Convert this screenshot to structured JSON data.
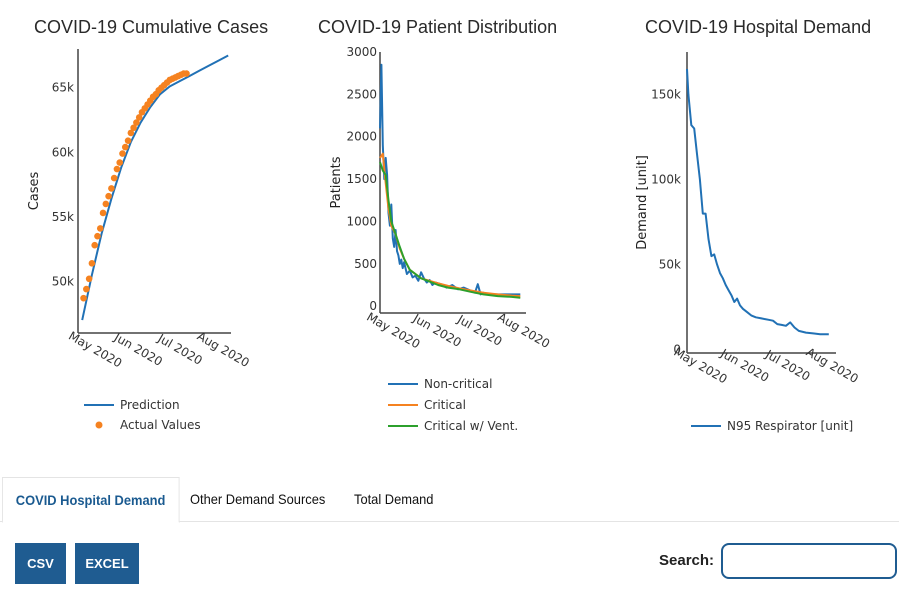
{
  "colors": {
    "blue": "#2171b5",
    "orange": "#f58220",
    "green": "#2ca02c",
    "button": "#1f5c91"
  },
  "chart_data": [
    {
      "type": "line",
      "title": "COVID-19 Cumulative Cases",
      "ylabel": "Cases",
      "xlabel": "",
      "x_ticks": [
        "May 2020",
        "Jun 2020",
        "Jul 2020",
        "Aug 2020"
      ],
      "y_ticks": [
        {
          "value": 50000,
          "label": "50k"
        },
        {
          "value": 55000,
          "label": "55k"
        },
        {
          "value": 60000,
          "label": "60k"
        },
        {
          "value": 65000,
          "label": "65k"
        }
      ],
      "xlim": [
        "2020-04-20",
        "2020-08-08"
      ],
      "ylim": [
        46000,
        68000
      ],
      "legend": [
        "Prediction",
        "Actual Values"
      ],
      "legend_position": "bottom",
      "series": [
        {
          "name": "Prediction",
          "kind": "line",
          "color": "#2171b5",
          "x": [
            "2020-04-23",
            "2020-04-30",
            "2020-05-07",
            "2020-05-14",
            "2020-05-21",
            "2020-05-28",
            "2020-06-04",
            "2020-06-11",
            "2020-06-18",
            "2020-06-25",
            "2020-07-02",
            "2020-07-09",
            "2020-07-16",
            "2020-07-23",
            "2020-07-30",
            "2020-08-06"
          ],
          "y": [
            47000,
            50500,
            53700,
            56400,
            58800,
            60800,
            62300,
            63500,
            64500,
            65100,
            65500,
            65900,
            66300,
            66700,
            67100,
            67500
          ]
        },
        {
          "name": "Actual Values",
          "kind": "scatter",
          "color": "#f58220",
          "x": [
            "2020-04-24",
            "2020-04-26",
            "2020-04-28",
            "2020-04-30",
            "2020-05-02",
            "2020-05-04",
            "2020-05-06",
            "2020-05-08",
            "2020-05-10",
            "2020-05-12",
            "2020-05-14",
            "2020-05-16",
            "2020-05-18",
            "2020-05-20",
            "2020-05-22",
            "2020-05-24",
            "2020-05-26",
            "2020-05-28",
            "2020-05-30",
            "2020-06-01",
            "2020-06-03",
            "2020-06-05",
            "2020-06-07",
            "2020-06-09",
            "2020-06-11",
            "2020-06-13",
            "2020-06-15",
            "2020-06-17",
            "2020-06-19",
            "2020-06-21",
            "2020-06-23",
            "2020-06-25",
            "2020-06-27",
            "2020-06-29",
            "2020-07-01",
            "2020-07-03",
            "2020-07-05",
            "2020-07-07"
          ],
          "y": [
            48700,
            49400,
            50200,
            51400,
            52800,
            53500,
            54100,
            55300,
            56000,
            56600,
            57200,
            58000,
            58700,
            59200,
            59900,
            60400,
            60900,
            61500,
            61900,
            62300,
            62700,
            63100,
            63400,
            63700,
            64000,
            64300,
            64500,
            64800,
            65000,
            65200,
            65400,
            65600,
            65700,
            65800,
            65900,
            66000,
            66100,
            66100
          ]
        }
      ]
    },
    {
      "type": "line",
      "title": "COVID-19 Patient Distribution",
      "ylabel": "Patients",
      "xlabel": "",
      "x_ticks": [
        "May 2020",
        "Jun 2020",
        "Jul 2020",
        "Aug 2020"
      ],
      "y_ticks": [
        {
          "value": 0,
          "label": "0"
        },
        {
          "value": 500,
          "label": "500"
        },
        {
          "value": 1000,
          "label": "1000"
        },
        {
          "value": 1500,
          "label": "1500"
        },
        {
          "value": 2000,
          "label": "2000"
        },
        {
          "value": 2500,
          "label": "2500"
        },
        {
          "value": 3000,
          "label": "3000"
        }
      ],
      "xlim": [
        "2020-04-23",
        "2020-08-04"
      ],
      "ylim": [
        -80,
        3000
      ],
      "legend": [
        "Non-critical",
        "Critical",
        "Critical w/ Vent."
      ],
      "legend_position": "bottom",
      "series": [
        {
          "name": "Non-critical",
          "color": "#2171b5",
          "x": [
            "2020-04-23",
            "2020-04-24",
            "2020-04-25",
            "2020-04-26",
            "2020-04-27",
            "2020-04-28",
            "2020-04-29",
            "2020-04-30",
            "2020-05-01",
            "2020-05-02",
            "2020-05-03",
            "2020-05-04",
            "2020-05-05",
            "2020-05-06",
            "2020-05-07",
            "2020-05-08",
            "2020-05-09",
            "2020-05-10",
            "2020-05-12",
            "2020-05-14",
            "2020-05-16",
            "2020-05-18",
            "2020-05-20",
            "2020-05-22",
            "2020-05-24",
            "2020-05-26",
            "2020-05-28",
            "2020-05-30",
            "2020-06-01",
            "2020-06-05",
            "2020-06-09",
            "2020-06-13",
            "2020-06-17",
            "2020-06-21",
            "2020-06-25",
            "2020-06-29",
            "2020-07-01",
            "2020-07-03",
            "2020-07-05",
            "2020-07-08",
            "2020-07-12",
            "2020-07-16",
            "2020-07-20",
            "2020-07-25",
            "2020-07-31"
          ],
          "y": [
            2100,
            2850,
            1900,
            1500,
            1750,
            1550,
            1100,
            950,
            1200,
            800,
            700,
            900,
            650,
            600,
            500,
            550,
            450,
            520,
            380,
            420,
            340,
            360,
            300,
            400,
            330,
            280,
            310,
            250,
            280,
            260,
            220,
            250,
            200,
            220,
            190,
            160,
            260,
            140,
            160,
            140,
            140,
            140,
            140,
            140,
            140
          ]
        },
        {
          "name": "Critical",
          "color": "#f58220",
          "x": [
            "2020-04-23",
            "2020-04-25",
            "2020-04-27",
            "2020-04-29",
            "2020-05-01",
            "2020-05-04",
            "2020-05-07",
            "2020-05-10",
            "2020-05-14",
            "2020-05-18",
            "2020-05-22",
            "2020-05-28",
            "2020-06-03",
            "2020-06-10",
            "2020-06-18",
            "2020-06-26",
            "2020-07-05",
            "2020-07-15",
            "2020-07-25",
            "2020-07-31"
          ],
          "y": [
            1750,
            1800,
            1450,
            1150,
            950,
            850,
            680,
            560,
            430,
            380,
            330,
            300,
            270,
            240,
            210,
            185,
            160,
            140,
            125,
            120
          ]
        },
        {
          "name": "Critical w/ Vent.",
          "color": "#2ca02c",
          "x": [
            "2020-04-23",
            "2020-04-25",
            "2020-04-27",
            "2020-04-29",
            "2020-05-01",
            "2020-05-04",
            "2020-05-07",
            "2020-05-10",
            "2020-05-14",
            "2020-05-18",
            "2020-05-22",
            "2020-05-28",
            "2020-06-03",
            "2020-06-10",
            "2020-06-18",
            "2020-06-26",
            "2020-07-05",
            "2020-07-15",
            "2020-07-25",
            "2020-07-31"
          ],
          "y": [
            1700,
            1600,
            1550,
            1250,
            1000,
            850,
            700,
            560,
            430,
            380,
            330,
            290,
            250,
            220,
            200,
            170,
            140,
            120,
            110,
            100
          ]
        }
      ]
    },
    {
      "type": "line",
      "title": "COVID-19 Hospital Demand",
      "ylabel": "Demand [unit]",
      "xlabel": "",
      "x_ticks": [
        "May 2020",
        "Jun 2020",
        "Jul 2020",
        "Aug 2020"
      ],
      "y_ticks": [
        {
          "value": 0,
          "label": "0"
        },
        {
          "value": 50000,
          "label": "50k"
        },
        {
          "value": 100000,
          "label": "100k"
        },
        {
          "value": 150000,
          "label": "150k"
        }
      ],
      "xlim": [
        "2020-04-23",
        "2020-08-05"
      ],
      "ylim": [
        -2000,
        175000
      ],
      "legend": [
        "N95 Respirator [unit]"
      ],
      "legend_position": "bottom",
      "series": [
        {
          "name": "N95 Respirator [unit]",
          "color": "#2171b5",
          "x": [
            "2020-04-23",
            "2020-04-24",
            "2020-04-26",
            "2020-04-28",
            "2020-04-30",
            "2020-05-02",
            "2020-05-04",
            "2020-05-06",
            "2020-05-08",
            "2020-05-10",
            "2020-05-12",
            "2020-05-14",
            "2020-05-16",
            "2020-05-18",
            "2020-05-20",
            "2020-05-22",
            "2020-05-24",
            "2020-05-26",
            "2020-05-28",
            "2020-05-30",
            "2020-06-01",
            "2020-06-04",
            "2020-06-07",
            "2020-06-10",
            "2020-06-13",
            "2020-06-16",
            "2020-06-19",
            "2020-06-22",
            "2020-06-25",
            "2020-06-28",
            "2020-07-01",
            "2020-07-04",
            "2020-07-07",
            "2020-07-10",
            "2020-07-15",
            "2020-07-20",
            "2020-07-25",
            "2020-07-31"
          ],
          "y": [
            165000,
            150000,
            132000,
            130000,
            115000,
            100000,
            80000,
            80000,
            65000,
            55000,
            56000,
            50000,
            45000,
            42000,
            38000,
            35000,
            32000,
            28000,
            30000,
            26000,
            24000,
            22000,
            20000,
            19000,
            18500,
            18000,
            17500,
            17000,
            15000,
            14500,
            14000,
            16000,
            13000,
            11000,
            10000,
            9500,
            9000,
            9000
          ]
        }
      ]
    }
  ],
  "tabs": [
    {
      "label": "COVID Hospital Demand",
      "active": true
    },
    {
      "label": "Other Demand Sources",
      "active": false
    },
    {
      "label": "Total Demand",
      "active": false
    }
  ],
  "buttons": {
    "csv": "CSV",
    "excel": "EXCEL"
  },
  "search": {
    "label": "Search:",
    "value": ""
  }
}
